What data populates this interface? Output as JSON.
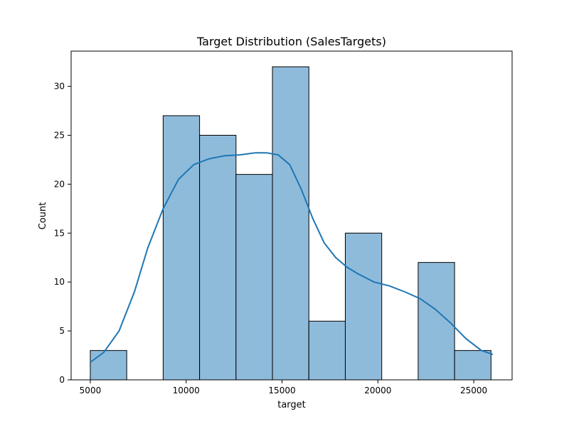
{
  "chart_data": {
    "type": "bar",
    "title": "Target Distribution (SalesTargets)",
    "xlabel": "target",
    "ylabel": "Count",
    "xlim": [
      4000,
      27000
    ],
    "ylim": [
      0,
      33.6
    ],
    "x_ticks": [
      5000,
      10000,
      15000,
      20000,
      25000
    ],
    "y_ticks": [
      0,
      5,
      10,
      15,
      20,
      25,
      30
    ],
    "bins": [
      {
        "start": 5000,
        "end": 6900,
        "count": 3
      },
      {
        "start": 6900,
        "end": 8800,
        "count": 0
      },
      {
        "start": 8800,
        "end": 10700,
        "count": 27
      },
      {
        "start": 10700,
        "end": 12600,
        "count": 25
      },
      {
        "start": 12600,
        "end": 14500,
        "count": 21
      },
      {
        "start": 14500,
        "end": 16400,
        "count": 32
      },
      {
        "start": 16400,
        "end": 18300,
        "count": 6
      },
      {
        "start": 18300,
        "end": 20200,
        "count": 15
      },
      {
        "start": 20200,
        "end": 22100,
        "count": 0
      },
      {
        "start": 22100,
        "end": 24000,
        "count": 12
      },
      {
        "start": 24000,
        "end": 25900,
        "count": 3
      }
    ],
    "kde": [
      [
        5000,
        1.8
      ],
      [
        5700,
        2.8
      ],
      [
        6500,
        5.0
      ],
      [
        7300,
        9.0
      ],
      [
        8000,
        13.5
      ],
      [
        8800,
        17.5
      ],
      [
        9600,
        20.5
      ],
      [
        10400,
        22.0
      ],
      [
        11200,
        22.6
      ],
      [
        12000,
        22.9
      ],
      [
        12800,
        23.0
      ],
      [
        13600,
        23.2
      ],
      [
        14200,
        23.2
      ],
      [
        14800,
        23.0
      ],
      [
        15400,
        22.0
      ],
      [
        16000,
        19.5
      ],
      [
        16600,
        16.5
      ],
      [
        17200,
        14.0
      ],
      [
        17800,
        12.5
      ],
      [
        18400,
        11.5
      ],
      [
        19000,
        10.8
      ],
      [
        19800,
        10.0
      ],
      [
        20600,
        9.6
      ],
      [
        21400,
        9.0
      ],
      [
        22200,
        8.3
      ],
      [
        23000,
        7.2
      ],
      [
        23800,
        5.8
      ],
      [
        24600,
        4.2
      ],
      [
        25400,
        3.0
      ],
      [
        26000,
        2.6
      ]
    ],
    "bar_color": "#8fbbdb",
    "bar_edge_color": "#000000",
    "line_color": "#1f77b4",
    "grid": false,
    "legend": "none"
  }
}
